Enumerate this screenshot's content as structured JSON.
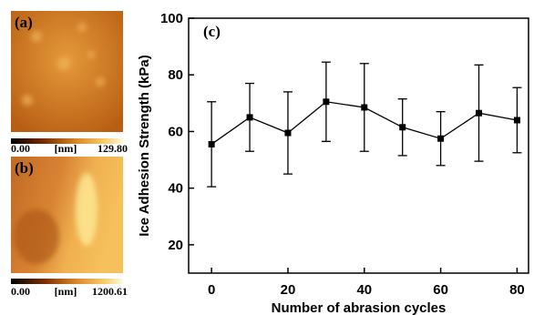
{
  "images": [
    {
      "label": "(a)",
      "min": "0.00",
      "unit": "[nm]",
      "max": "129.80"
    },
    {
      "label": "(b)",
      "min": "0.00",
      "unit": "[nm]",
      "max": "1200.61"
    }
  ],
  "chart_data": {
    "type": "errorbar",
    "annotation": "(c)",
    "x_label": "Number of abrasion cycles",
    "y_label": "Ice Adhesion Strength (kPa)",
    "x": [
      0,
      10,
      20,
      30,
      40,
      50,
      60,
      70,
      80
    ],
    "series": [
      {
        "color": "#000000",
        "values": [
          55.5,
          65,
          59.5,
          70.5,
          68.5,
          61.5,
          57.5,
          66.5,
          64
        ],
        "errors": [
          15,
          12,
          14.5,
          14,
          15.5,
          10,
          9.5,
          17,
          11.5
        ]
      }
    ],
    "xlim": [
      -6,
      83
    ],
    "ylim": [
      10,
      100
    ],
    "xticks": [
      0,
      20,
      40,
      60,
      80
    ],
    "yticks": [
      20,
      40,
      60,
      80,
      100
    ]
  }
}
